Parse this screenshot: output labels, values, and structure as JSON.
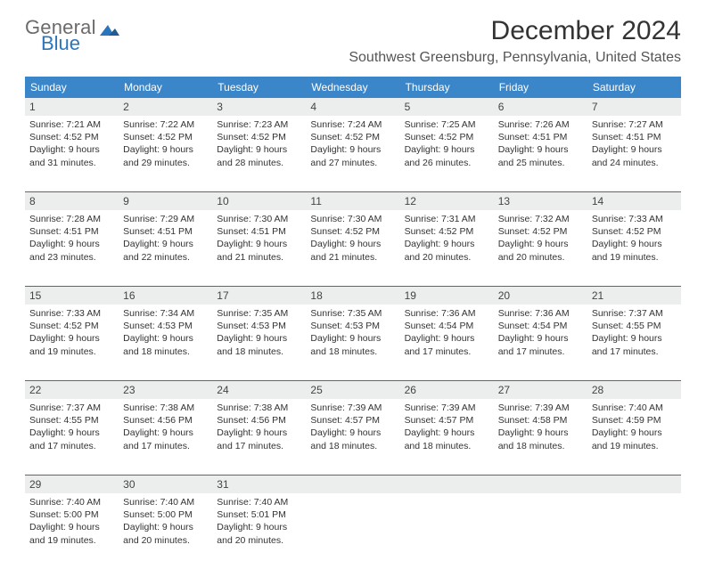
{
  "brand": {
    "word1": "General",
    "word2": "Blue",
    "color_gray": "#6b6b6b",
    "color_blue": "#2a76bd"
  },
  "title": "December 2024",
  "location": "Southwest Greensburg, Pennsylvania, United States",
  "theme": {
    "header_bg": "#3a86c8",
    "header_fg": "#ffffff",
    "daynum_bg": "#eceded",
    "divider": "#3a6fa0",
    "page_bg": "#ffffff"
  },
  "dow": [
    "Sunday",
    "Monday",
    "Tuesday",
    "Wednesday",
    "Thursday",
    "Friday",
    "Saturday"
  ],
  "weeks": [
    [
      {
        "n": "1",
        "sunrise": "7:21 AM",
        "sunset": "4:52 PM",
        "dl": "9 hours and 31 minutes."
      },
      {
        "n": "2",
        "sunrise": "7:22 AM",
        "sunset": "4:52 PM",
        "dl": "9 hours and 29 minutes."
      },
      {
        "n": "3",
        "sunrise": "7:23 AM",
        "sunset": "4:52 PM",
        "dl": "9 hours and 28 minutes."
      },
      {
        "n": "4",
        "sunrise": "7:24 AM",
        "sunset": "4:52 PM",
        "dl": "9 hours and 27 minutes."
      },
      {
        "n": "5",
        "sunrise": "7:25 AM",
        "sunset": "4:52 PM",
        "dl": "9 hours and 26 minutes."
      },
      {
        "n": "6",
        "sunrise": "7:26 AM",
        "sunset": "4:51 PM",
        "dl": "9 hours and 25 minutes."
      },
      {
        "n": "7",
        "sunrise": "7:27 AM",
        "sunset": "4:51 PM",
        "dl": "9 hours and 24 minutes."
      }
    ],
    [
      {
        "n": "8",
        "sunrise": "7:28 AM",
        "sunset": "4:51 PM",
        "dl": "9 hours and 23 minutes."
      },
      {
        "n": "9",
        "sunrise": "7:29 AM",
        "sunset": "4:51 PM",
        "dl": "9 hours and 22 minutes."
      },
      {
        "n": "10",
        "sunrise": "7:30 AM",
        "sunset": "4:51 PM",
        "dl": "9 hours and 21 minutes."
      },
      {
        "n": "11",
        "sunrise": "7:30 AM",
        "sunset": "4:52 PM",
        "dl": "9 hours and 21 minutes."
      },
      {
        "n": "12",
        "sunrise": "7:31 AM",
        "sunset": "4:52 PM",
        "dl": "9 hours and 20 minutes."
      },
      {
        "n": "13",
        "sunrise": "7:32 AM",
        "sunset": "4:52 PM",
        "dl": "9 hours and 20 minutes."
      },
      {
        "n": "14",
        "sunrise": "7:33 AM",
        "sunset": "4:52 PM",
        "dl": "9 hours and 19 minutes."
      }
    ],
    [
      {
        "n": "15",
        "sunrise": "7:33 AM",
        "sunset": "4:52 PM",
        "dl": "9 hours and 19 minutes."
      },
      {
        "n": "16",
        "sunrise": "7:34 AM",
        "sunset": "4:53 PM",
        "dl": "9 hours and 18 minutes."
      },
      {
        "n": "17",
        "sunrise": "7:35 AM",
        "sunset": "4:53 PM",
        "dl": "9 hours and 18 minutes."
      },
      {
        "n": "18",
        "sunrise": "7:35 AM",
        "sunset": "4:53 PM",
        "dl": "9 hours and 18 minutes."
      },
      {
        "n": "19",
        "sunrise": "7:36 AM",
        "sunset": "4:54 PM",
        "dl": "9 hours and 17 minutes."
      },
      {
        "n": "20",
        "sunrise": "7:36 AM",
        "sunset": "4:54 PM",
        "dl": "9 hours and 17 minutes."
      },
      {
        "n": "21",
        "sunrise": "7:37 AM",
        "sunset": "4:55 PM",
        "dl": "9 hours and 17 minutes."
      }
    ],
    [
      {
        "n": "22",
        "sunrise": "7:37 AM",
        "sunset": "4:55 PM",
        "dl": "9 hours and 17 minutes."
      },
      {
        "n": "23",
        "sunrise": "7:38 AM",
        "sunset": "4:56 PM",
        "dl": "9 hours and 17 minutes."
      },
      {
        "n": "24",
        "sunrise": "7:38 AM",
        "sunset": "4:56 PM",
        "dl": "9 hours and 17 minutes."
      },
      {
        "n": "25",
        "sunrise": "7:39 AM",
        "sunset": "4:57 PM",
        "dl": "9 hours and 18 minutes."
      },
      {
        "n": "26",
        "sunrise": "7:39 AM",
        "sunset": "4:57 PM",
        "dl": "9 hours and 18 minutes."
      },
      {
        "n": "27",
        "sunrise": "7:39 AM",
        "sunset": "4:58 PM",
        "dl": "9 hours and 18 minutes."
      },
      {
        "n": "28",
        "sunrise": "7:40 AM",
        "sunset": "4:59 PM",
        "dl": "9 hours and 19 minutes."
      }
    ],
    [
      {
        "n": "29",
        "sunrise": "7:40 AM",
        "sunset": "5:00 PM",
        "dl": "9 hours and 19 minutes."
      },
      {
        "n": "30",
        "sunrise": "7:40 AM",
        "sunset": "5:00 PM",
        "dl": "9 hours and 20 minutes."
      },
      {
        "n": "31",
        "sunrise": "7:40 AM",
        "sunset": "5:01 PM",
        "dl": "9 hours and 20 minutes."
      },
      null,
      null,
      null,
      null
    ]
  ],
  "labels": {
    "sunrise": "Sunrise:",
    "sunset": "Sunset:",
    "daylight": "Daylight:"
  }
}
